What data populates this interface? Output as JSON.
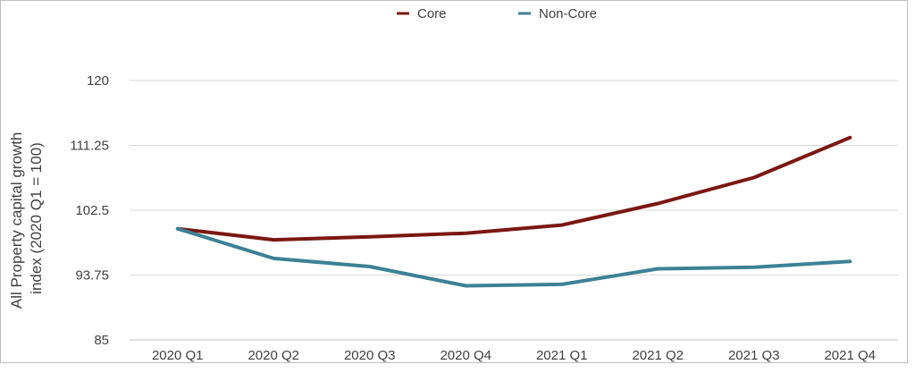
{
  "chart_data": {
    "type": "line",
    "title": "",
    "xlabel": "",
    "ylabel": "All Property capital growth index (2020 Q1 = 100)",
    "ylabel_lines": [
      "All Property capital growth",
      "index (2020 Q1 = 100)"
    ],
    "categories": [
      "2020 Q1",
      "2020 Q2",
      "2020 Q3",
      "2020 Q4",
      "2021 Q1",
      "2021 Q2",
      "2021 Q3",
      "2021 Q4"
    ],
    "yticks": [
      "85",
      "93.75",
      "102.5",
      "111.25",
      "120"
    ],
    "ylim": [
      85,
      120
    ],
    "grid": true,
    "legend_position": "top-center",
    "series": [
      {
        "name": "Core",
        "color": "#7b1712",
        "values": [
          100,
          98.5,
          98.9,
          99.4,
          100.5,
          103.4,
          106.9,
          112.3
        ]
      },
      {
        "name": "Non-Core",
        "color": "#3c8195",
        "values": [
          100,
          96.0,
          94.9,
          92.3,
          92.5,
          94.6,
          94.8,
          95.6
        ]
      }
    ]
  }
}
